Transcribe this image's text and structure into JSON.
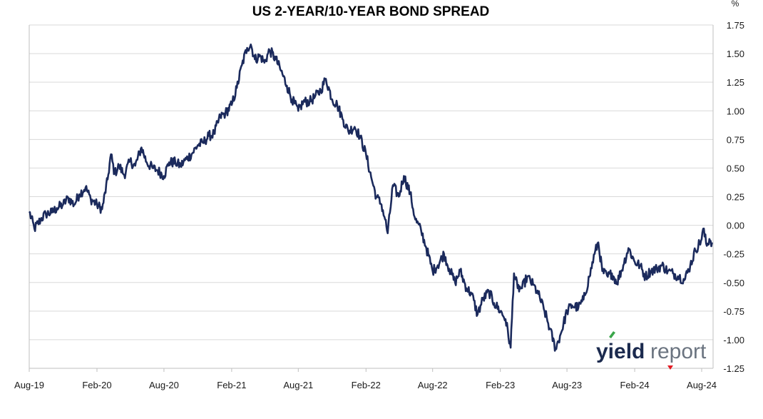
{
  "chart_data": {
    "type": "line",
    "title": "US 2-YEAR/10-YEAR BOND SPREAD",
    "y_unit": "%",
    "ylim": [
      -1.25,
      1.75
    ],
    "y_ticks": [
      "1.75",
      "1.50",
      "1.25",
      "1.00",
      "0.75",
      "0.50",
      "0.25",
      "0.00",
      "-0.25",
      "-0.50",
      "-0.75",
      "-1.00",
      "-1.25"
    ],
    "y_tick_values": [
      1.75,
      1.5,
      1.25,
      1.0,
      0.75,
      0.5,
      0.25,
      0.0,
      -0.25,
      -0.5,
      -0.75,
      -1.0,
      -1.25
    ],
    "x_range": [
      "2019-08-01",
      "2024-09-01"
    ],
    "x_ticks": [
      {
        "label": "Aug-19",
        "date": "2019-08-01"
      },
      {
        "label": "Feb-20",
        "date": "2020-02-01"
      },
      {
        "label": "Aug-20",
        "date": "2020-08-01"
      },
      {
        "label": "Feb-21",
        "date": "2021-02-01"
      },
      {
        "label": "Aug-21",
        "date": "2021-08-01"
      },
      {
        "label": "Feb-22",
        "date": "2022-02-01"
      },
      {
        "label": "Aug-22",
        "date": "2022-08-01"
      },
      {
        "label": "Feb-23",
        "date": "2023-02-01"
      },
      {
        "label": "Aug-23",
        "date": "2023-08-01"
      },
      {
        "label": "Feb-24",
        "date": "2024-02-01"
      },
      {
        "label": "Aug-24",
        "date": "2024-08-01"
      }
    ],
    "grid": true,
    "series": [
      {
        "color": "#1b2a5c",
        "points": [
          [
            "2019-08-01",
            0.12
          ],
          [
            "2019-08-15",
            -0.03
          ],
          [
            "2019-09-01",
            0.05
          ],
          [
            "2019-09-15",
            0.1
          ],
          [
            "2019-10-01",
            0.11
          ],
          [
            "2019-10-15",
            0.15
          ],
          [
            "2019-11-01",
            0.18
          ],
          [
            "2019-11-15",
            0.24
          ],
          [
            "2019-12-01",
            0.18
          ],
          [
            "2019-12-15",
            0.27
          ],
          [
            "2020-01-01",
            0.33
          ],
          [
            "2020-01-15",
            0.23
          ],
          [
            "2020-02-01",
            0.18
          ],
          [
            "2020-02-15",
            0.14
          ],
          [
            "2020-03-01",
            0.4
          ],
          [
            "2020-03-10",
            0.62
          ],
          [
            "2020-03-20",
            0.45
          ],
          [
            "2020-04-01",
            0.52
          ],
          [
            "2020-04-15",
            0.44
          ],
          [
            "2020-05-01",
            0.56
          ],
          [
            "2020-05-15",
            0.52
          ],
          [
            "2020-06-01",
            0.68
          ],
          [
            "2020-06-15",
            0.55
          ],
          [
            "2020-07-01",
            0.5
          ],
          [
            "2020-07-15",
            0.48
          ],
          [
            "2020-08-01",
            0.43
          ],
          [
            "2020-08-15",
            0.55
          ],
          [
            "2020-09-01",
            0.55
          ],
          [
            "2020-09-15",
            0.52
          ],
          [
            "2020-10-01",
            0.58
          ],
          [
            "2020-10-15",
            0.62
          ],
          [
            "2020-11-01",
            0.7
          ],
          [
            "2020-11-15",
            0.72
          ],
          [
            "2020-12-01",
            0.78
          ],
          [
            "2020-12-15",
            0.8
          ],
          [
            "2021-01-01",
            0.95
          ],
          [
            "2021-01-15",
            0.98
          ],
          [
            "2021-02-01",
            1.05
          ],
          [
            "2021-02-15",
            1.2
          ],
          [
            "2021-03-01",
            1.4
          ],
          [
            "2021-03-15",
            1.55
          ],
          [
            "2021-03-25",
            1.58
          ],
          [
            "2021-04-05",
            1.45
          ],
          [
            "2021-04-20",
            1.48
          ],
          [
            "2021-05-01",
            1.42
          ],
          [
            "2021-05-15",
            1.53
          ],
          [
            "2021-06-01",
            1.45
          ],
          [
            "2021-06-15",
            1.35
          ],
          [
            "2021-07-01",
            1.22
          ],
          [
            "2021-07-15",
            1.1
          ],
          [
            "2021-08-01",
            1.0
          ],
          [
            "2021-08-15",
            1.08
          ],
          [
            "2021-09-01",
            1.08
          ],
          [
            "2021-09-15",
            1.12
          ],
          [
            "2021-10-01",
            1.18
          ],
          [
            "2021-10-15",
            1.28
          ],
          [
            "2021-11-01",
            1.1
          ],
          [
            "2021-11-15",
            1.05
          ],
          [
            "2021-12-01",
            0.92
          ],
          [
            "2021-12-15",
            0.82
          ],
          [
            "2022-01-01",
            0.86
          ],
          [
            "2022-01-15",
            0.78
          ],
          [
            "2022-02-01",
            0.62
          ],
          [
            "2022-02-15",
            0.42
          ],
          [
            "2022-03-01",
            0.25
          ],
          [
            "2022-03-15",
            0.18
          ],
          [
            "2022-03-25",
            0.05
          ],
          [
            "2022-04-01",
            -0.07
          ],
          [
            "2022-04-15",
            0.35
          ],
          [
            "2022-05-01",
            0.25
          ],
          [
            "2022-05-15",
            0.43
          ],
          [
            "2022-06-01",
            0.28
          ],
          [
            "2022-06-15",
            0.05
          ],
          [
            "2022-07-01",
            -0.05
          ],
          [
            "2022-07-15",
            -0.2
          ],
          [
            "2022-08-01",
            -0.4
          ],
          [
            "2022-08-15",
            -0.35
          ],
          [
            "2022-09-01",
            -0.25
          ],
          [
            "2022-09-15",
            -0.38
          ],
          [
            "2022-10-01",
            -0.5
          ],
          [
            "2022-10-15",
            -0.4
          ],
          [
            "2022-11-01",
            -0.55
          ],
          [
            "2022-11-15",
            -0.6
          ],
          [
            "2022-12-01",
            -0.78
          ],
          [
            "2022-12-15",
            -0.65
          ],
          [
            "2023-01-01",
            -0.58
          ],
          [
            "2023-01-15",
            -0.68
          ],
          [
            "2023-02-01",
            -0.75
          ],
          [
            "2023-02-15",
            -0.82
          ],
          [
            "2023-03-01",
            -1.07
          ],
          [
            "2023-03-10",
            -0.42
          ],
          [
            "2023-03-20",
            -0.55
          ],
          [
            "2023-04-01",
            -0.55
          ],
          [
            "2023-04-15",
            -0.45
          ],
          [
            "2023-05-01",
            -0.52
          ],
          [
            "2023-05-15",
            -0.6
          ],
          [
            "2023-06-01",
            -0.75
          ],
          [
            "2023-06-15",
            -0.9
          ],
          [
            "2023-07-01",
            -1.08
          ],
          [
            "2023-07-15",
            -0.95
          ],
          [
            "2023-08-01",
            -0.75
          ],
          [
            "2023-08-15",
            -0.7
          ],
          [
            "2023-09-01",
            -0.72
          ],
          [
            "2023-09-15",
            -0.65
          ],
          [
            "2023-10-01",
            -0.45
          ],
          [
            "2023-10-15",
            -0.25
          ],
          [
            "2023-10-25",
            -0.15
          ],
          [
            "2023-11-05",
            -0.4
          ],
          [
            "2023-11-20",
            -0.45
          ],
          [
            "2023-12-01",
            -0.42
          ],
          [
            "2023-12-15",
            -0.5
          ],
          [
            "2024-01-01",
            -0.35
          ],
          [
            "2024-01-15",
            -0.2
          ],
          [
            "2024-02-01",
            -0.32
          ],
          [
            "2024-02-15",
            -0.35
          ],
          [
            "2024-03-01",
            -0.45
          ],
          [
            "2024-03-15",
            -0.4
          ],
          [
            "2024-04-01",
            -0.38
          ],
          [
            "2024-04-15",
            -0.35
          ],
          [
            "2024-05-01",
            -0.4
          ],
          [
            "2024-05-15",
            -0.42
          ],
          [
            "2024-06-01",
            -0.45
          ],
          [
            "2024-06-15",
            -0.48
          ],
          [
            "2024-07-01",
            -0.35
          ],
          [
            "2024-07-15",
            -0.22
          ],
          [
            "2024-08-01",
            -0.12
          ],
          [
            "2024-08-05",
            -0.03
          ],
          [
            "2024-08-15",
            -0.18
          ],
          [
            "2024-08-22",
            -0.12
          ],
          [
            "2024-08-29",
            -0.15
          ]
        ]
      }
    ]
  },
  "logo": {
    "part1": "yield",
    "part2": "report",
    "dot_color": "#e31b23",
    "accent_color": "#3aa64a"
  }
}
